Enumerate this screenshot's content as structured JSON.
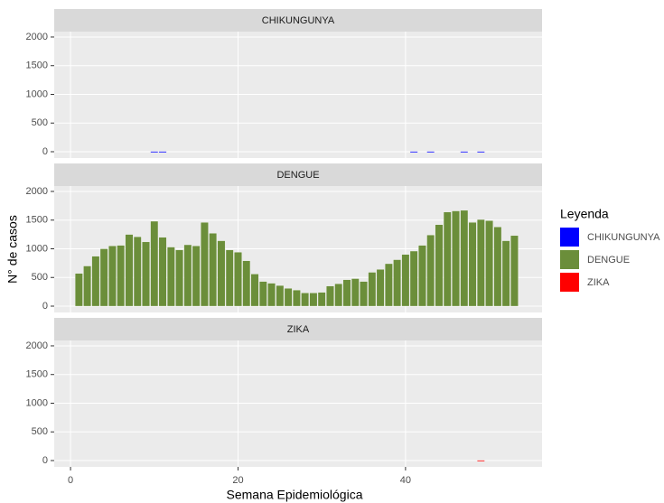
{
  "chart_data": {
    "type": "bar",
    "x_label": "Semana Epidemiológica",
    "y_label": "N° de casos",
    "legend_title": "Leyenda",
    "legend": "right",
    "grid": true,
    "xlim": [
      -1.95,
      56.3
    ],
    "xticks": [
      0,
      20,
      40
    ],
    "ylim": [
      -110,
      2094
    ],
    "yticks": [
      0,
      500,
      1000,
      1500,
      2000
    ],
    "facets": [
      {
        "title": "CHIKUNGUNYA",
        "series": [
          {
            "name": "CHIKUNGUNYA",
            "color": "#0000FF",
            "x": [
              10,
              11,
              41,
              43,
              47,
              49
            ],
            "values": [
              5,
              5,
              5,
              5,
              5,
              5
            ]
          }
        ]
      },
      {
        "title": "DENGUE",
        "series": [
          {
            "name": "DENGUE",
            "color": "#6B8E3A",
            "x": [
              1,
              2,
              3,
              4,
              5,
              6,
              7,
              8,
              9,
              10,
              11,
              12,
              13,
              14,
              15,
              16,
              17,
              18,
              19,
              20,
              21,
              22,
              23,
              24,
              25,
              26,
              27,
              28,
              29,
              30,
              31,
              32,
              33,
              34,
              35,
              36,
              37,
              38,
              39,
              40,
              41,
              42,
              43,
              44,
              45,
              46,
              47,
              48,
              49,
              50,
              51,
              52,
              53
            ],
            "values": [
              570,
              700,
              870,
              1000,
              1050,
              1060,
              1250,
              1210,
              1120,
              1480,
              1200,
              1030,
              980,
              1070,
              1050,
              1460,
              1270,
              1140,
              980,
              940,
              790,
              560,
              430,
              400,
              360,
              310,
              280,
              230,
              230,
              240,
              350,
              390,
              460,
              480,
              430,
              590,
              640,
              740,
              810,
              900,
              960,
              1060,
              1240,
              1420,
              1640,
              1660,
              1670,
              1460,
              1510,
              1490,
              1380,
              1140,
              1230
            ]
          }
        ]
      },
      {
        "title": "ZIKA",
        "series": [
          {
            "name": "ZIKA",
            "color": "#FF0000",
            "x": [
              49
            ],
            "values": [
              5
            ]
          }
        ]
      }
    ]
  }
}
